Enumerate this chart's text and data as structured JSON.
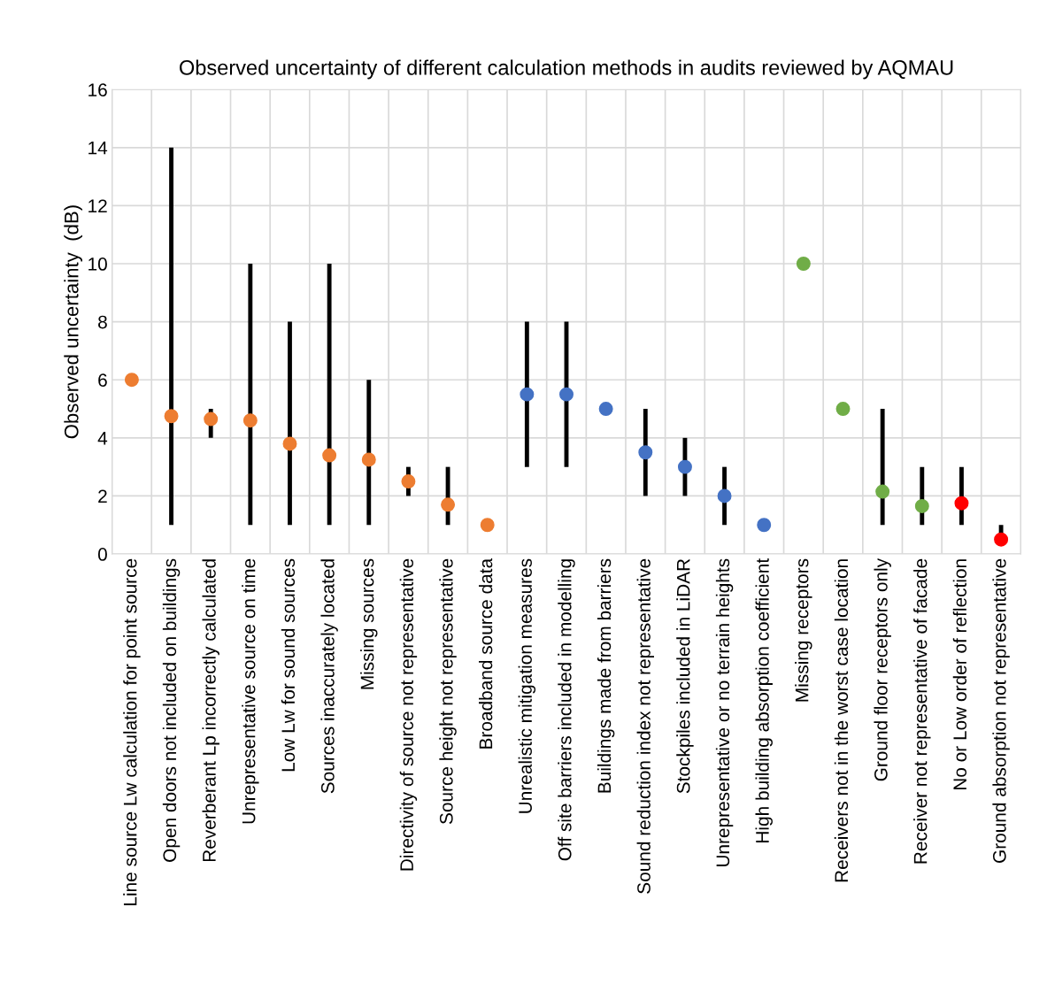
{
  "chart_data": {
    "type": "scatter",
    "title": "Observed uncertainty of different calculation methods in audits reviewed by AQMAU",
    "ylabel": "Observed uncertainty  (dB)",
    "categories": [
      "Line source Lw calculation for point source",
      "Open doors not included on buildings",
      "Reverberant Lp incorrectly calculated",
      "Unrepresentative source on time",
      "Low Lw for sound sources",
      "Sources inaccurately located",
      "Missing sources",
      "Directivity of source not representative",
      "Source height not representative",
      "Broadband source data",
      "Unrealistic mitigation measures",
      "Off site barriers included in modelling",
      "Buildings made from barriers",
      "Sound reduction index not representative",
      "Stockpiles included in LiDAR",
      "Unrepresentative or no terrain heights",
      "High building absorption coefficient",
      "Missing receptors",
      "Receivers not in the worst case location",
      "Ground floor receptors only",
      "Receiver not representative of facade",
      "No or Low order of reflection",
      "Ground absorption not representative"
    ],
    "values": [
      6,
      4.75,
      4.65,
      4.6,
      3.8,
      3.4,
      3.25,
      2.5,
      1.7,
      1,
      5.5,
      5.5,
      5,
      3.5,
      3,
      2,
      1,
      10,
      5,
      2.15,
      1.65,
      1.75,
      0.5
    ],
    "errors": [
      null,
      [
        1,
        14
      ],
      [
        4,
        5
      ],
      [
        1,
        10
      ],
      [
        1,
        8
      ],
      [
        1,
        10
      ],
      [
        1,
        6
      ],
      [
        2,
        3
      ],
      [
        1,
        3
      ],
      null,
      [
        3,
        8
      ],
      [
        3,
        8
      ],
      null,
      [
        2,
        5
      ],
      [
        2,
        4
      ],
      [
        1,
        3
      ],
      null,
      null,
      null,
      [
        1,
        5
      ],
      [
        1,
        3
      ],
      [
        1,
        3
      ],
      [
        0.5,
        1
      ]
    ],
    "colors": [
      "#ed7d31",
      "#ed7d31",
      "#ed7d31",
      "#ed7d31",
      "#ed7d31",
      "#ed7d31",
      "#ed7d31",
      "#ed7d31",
      "#ed7d31",
      "#ed7d31",
      "#4472c4",
      "#4472c4",
      "#4472c4",
      "#4472c4",
      "#4472c4",
      "#4472c4",
      "#4472c4",
      "#70ad47",
      "#70ad47",
      "#70ad47",
      "#70ad47",
      "#ff0000",
      "#ff0000"
    ],
    "ylim": [
      0,
      16
    ],
    "yticks": [
      0,
      2,
      4,
      6,
      8,
      10,
      12,
      14,
      16
    ],
    "grid": true,
    "marker": "circle"
  }
}
